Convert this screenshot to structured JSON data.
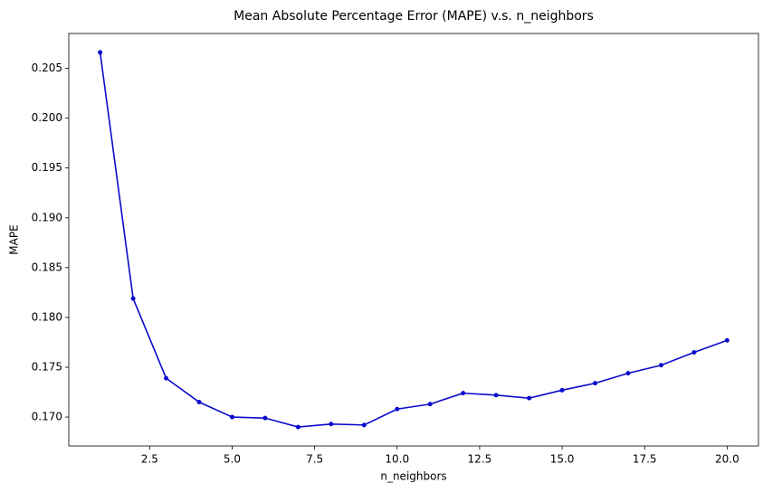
{
  "chart_data": {
    "type": "line",
    "title": "Mean Absolute Percentage Error (MAPE) v.s. n_neighbors",
    "x_label": "n_neighbors",
    "y_label": "MAPE",
    "x": [
      1,
      2,
      3,
      4,
      5,
      6,
      7,
      8,
      9,
      10,
      11,
      12,
      13,
      14,
      15,
      16,
      17,
      18,
      19,
      20
    ],
    "series": [
      {
        "color": "#0a0acc",
        "values": [
          0.2066,
          0.1819,
          0.1739,
          0.1715,
          0.17,
          0.1699,
          0.169,
          0.1693,
          0.1692,
          0.1708,
          0.1713,
          0.1724,
          0.1722,
          0.1719,
          0.1727,
          0.1734,
          0.1744,
          0.1752,
          0.1765,
          0.1777
        ]
      }
    ],
    "xlim": [
      0.05,
      20.95
    ],
    "ylim": [
      0.1671,
      0.2085
    ],
    "xticks": [
      {
        "value": 2.5,
        "label": "2.5"
      },
      {
        "value": 5,
        "label": "5.0"
      },
      {
        "value": 7.5,
        "label": "7.5"
      },
      {
        "value": 10,
        "label": "10.0"
      },
      {
        "value": 12.5,
        "label": "12.5"
      },
      {
        "value": 15,
        "label": "15.0"
      },
      {
        "value": 17.5,
        "label": "17.5"
      },
      {
        "value": 20,
        "label": "20.0"
      }
    ],
    "yticks": [
      {
        "value": 0.17,
        "label": "0.170"
      },
      {
        "value": 0.175,
        "label": "0.175"
      },
      {
        "value": 0.18,
        "label": "0.180"
      },
      {
        "value": 0.185,
        "label": "0.185"
      },
      {
        "value": 0.19,
        "label": "0.190"
      },
      {
        "value": 0.195,
        "label": "0.195"
      },
      {
        "value": 0.2,
        "label": "0.200"
      },
      {
        "value": 0.205,
        "label": "0.205"
      }
    ],
    "grid": false
  }
}
